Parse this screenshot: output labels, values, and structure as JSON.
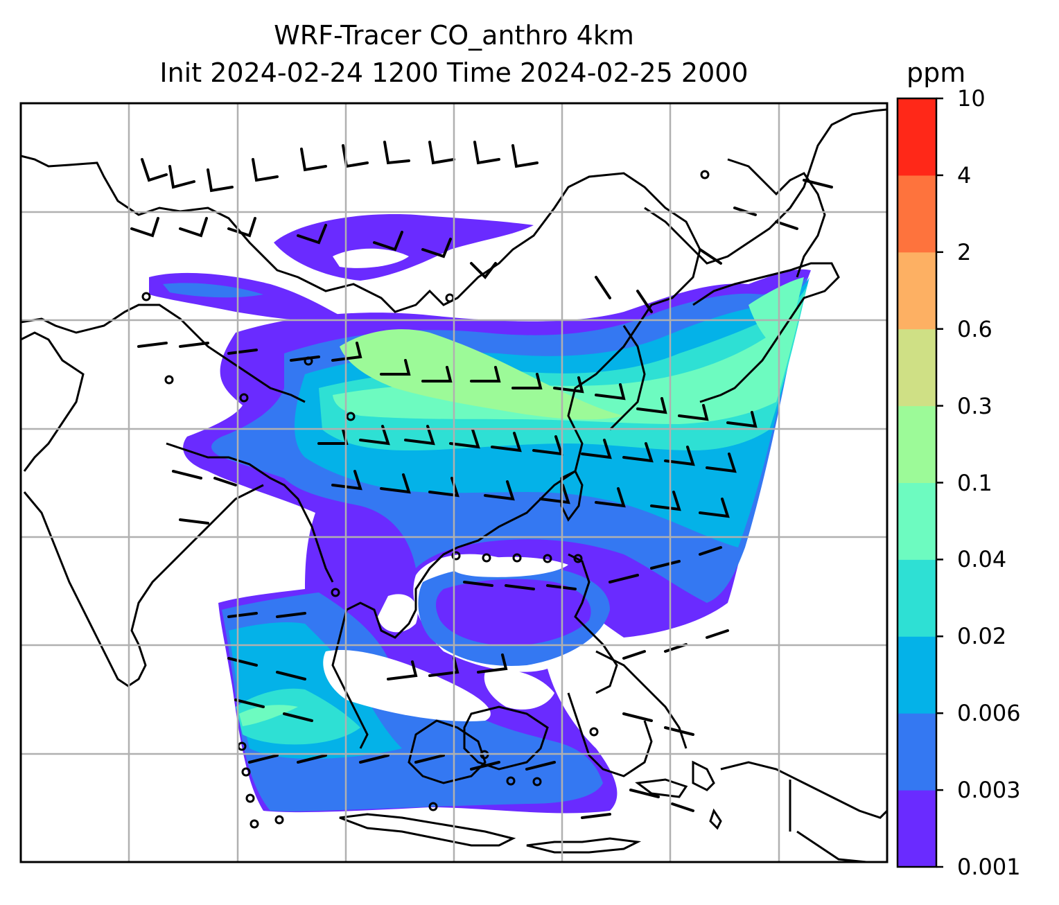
{
  "title": {
    "line1": "WRF-Tracer CO_anthro 4km",
    "line2": "Init 2024-02-24 1200 Time 2024-02-25 2000"
  },
  "colorbar": {
    "unit": "ppm",
    "levels": [
      "0.001",
      "0.003",
      "0.006",
      "0.02",
      "0.04",
      "0.1",
      "0.3",
      "0.6",
      "2",
      "4",
      "10"
    ],
    "colors": [
      "#6a2bff",
      "#3478f2",
      "#04b2e8",
      "#2ee0d4",
      "#6dfbc0",
      "#9cfa98",
      "#cfe085",
      "#fdb063",
      "#fe733d",
      "#ff2818"
    ]
  },
  "map": {
    "field": "CO_anthro",
    "grid_lines": true,
    "overlay": "wind barbs",
    "background": "#ffffff"
  }
}
